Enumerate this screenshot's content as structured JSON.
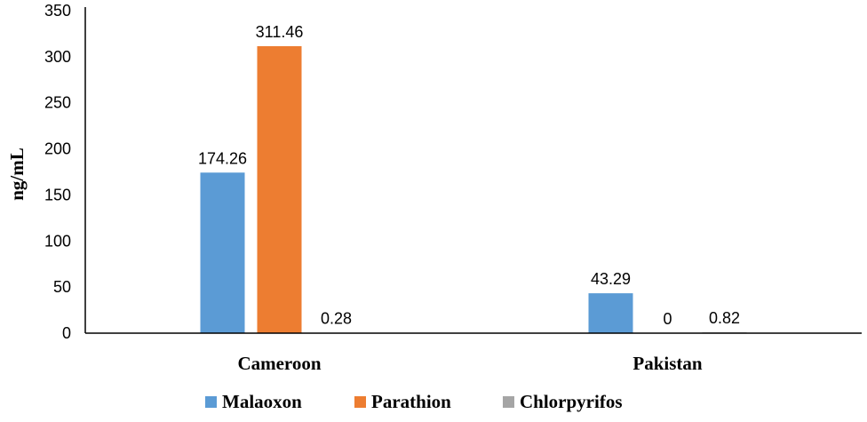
{
  "chart_data": {
    "type": "bar",
    "categories": [
      "Cameroon",
      "Pakistan"
    ],
    "series": [
      {
        "name": "Malaoxon",
        "values": [
          174.26,
          43.29
        ],
        "labels": [
          "174.26",
          "43.29"
        ],
        "color": "#5B9BD5"
      },
      {
        "name": "Parathion",
        "values": [
          311.46,
          0
        ],
        "labels": [
          "311.46",
          "0"
        ],
        "color": "#ED7D31"
      },
      {
        "name": "Chlorpyrifos",
        "values": [
          0.28,
          0.82
        ],
        "labels": [
          "0.28",
          "0.82"
        ],
        "color": "#A5A5A5"
      }
    ],
    "xlabel": "",
    "ylabel": "ng/mL",
    "ylim": [
      0,
      350
    ],
    "yticks": [
      "0",
      "50",
      "100",
      "150",
      "200",
      "250",
      "300",
      "350"
    ],
    "grid": false,
    "legend_position": "bottom"
  }
}
